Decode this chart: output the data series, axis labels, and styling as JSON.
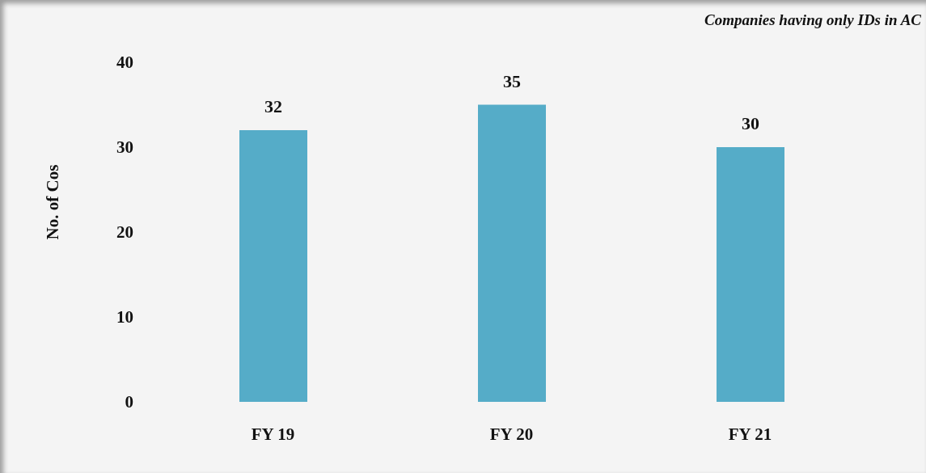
{
  "chart_data": {
    "type": "bar",
    "title": "Companies having only IDs in AC",
    "ylabel": "No. of Cos",
    "categories": [
      "FY 19",
      "FY 20",
      "FY 21"
    ],
    "values": [
      32,
      35,
      30
    ],
    "color": "#55acc8",
    "ylim": [
      0,
      40
    ],
    "yticks": [
      0,
      10,
      20,
      30,
      40
    ],
    "data_labels": true
  }
}
